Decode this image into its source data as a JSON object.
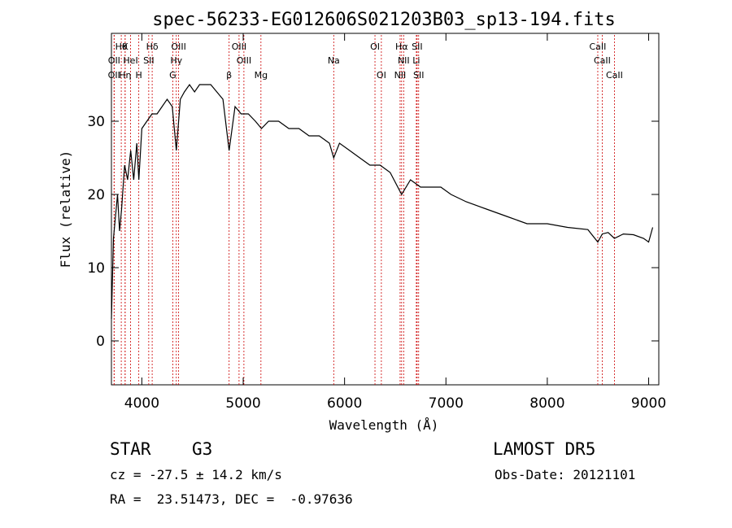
{
  "chart_data": {
    "type": "line",
    "title": "spec-56233-EG012606S021203B03_sp13-194.fits",
    "xlabel": "Wavelength (Å)",
    "ylabel": "Flux (relative)",
    "xlim": [
      3700,
      9100
    ],
    "ylim": [
      -6,
      42
    ],
    "xticks": [
      4000,
      5000,
      6000,
      7000,
      8000,
      9000
    ],
    "yticks": [
      0,
      10,
      20,
      30
    ],
    "grid": false,
    "series": [
      {
        "x": [
          3700,
          3720,
          3740,
          3760,
          3780,
          3800,
          3830,
          3860,
          3890,
          3920,
          3950,
          3970,
          4000,
          4050,
          4100,
          4150,
          4200,
          4250,
          4300,
          4340,
          4380,
          4420,
          4470,
          4520,
          4570,
          4620,
          4680,
          4740,
          4800,
          4861,
          4920,
          4980,
          5050,
          5120,
          5180,
          5250,
          5350,
          5450,
          5550,
          5650,
          5750,
          5850,
          5893,
          5950,
          6050,
          6150,
          6250,
          6350,
          6450,
          6563,
          6650,
          6750,
          6850,
          6950,
          7050,
          7200,
          7400,
          7600,
          7800,
          8000,
          8200,
          8400,
          8498,
          8542,
          8600,
          8662,
          8750,
          8850,
          8950,
          9000,
          9020,
          9040
        ],
        "y": [
          3,
          14,
          17,
          20,
          15,
          18,
          24,
          22,
          26,
          22,
          27,
          22,
          29,
          30,
          31,
          31,
          32,
          33,
          32,
          26,
          33,
          34,
          35,
          34,
          35,
          35,
          35,
          34,
          33,
          26,
          32,
          31,
          31,
          30,
          29,
          30,
          30,
          29,
          29,
          28,
          28,
          27,
          25,
          27,
          26,
          25,
          24,
          24,
          23,
          20,
          22,
          21,
          21,
          21,
          20,
          19,
          18,
          17,
          16,
          16,
          15.5,
          15.2,
          13.5,
          14.6,
          14.8,
          14,
          14.6,
          14.5,
          14,
          13.5,
          14.5,
          15.5
        ]
      }
    ],
    "lines": [
      {
        "x": 3797,
        "label": "Hθ",
        "row": 0
      },
      {
        "x": 3835,
        "label": "K",
        "row": 0
      },
      {
        "x": 4102,
        "label": "Hδ",
        "row": 0
      },
      {
        "x": 4363,
        "label": "OIII",
        "row": 0
      },
      {
        "x": 4959,
        "label": "OIII",
        "row": 0
      },
      {
        "x": 6300,
        "label": "OI",
        "row": 0
      },
      {
        "x": 6563,
        "label": "Hα",
        "row": 0
      },
      {
        "x": 6716,
        "label": "SII",
        "row": 0
      },
      {
        "x": 8498,
        "label": "CaII",
        "row": 0
      },
      {
        "x": 3727,
        "label": "OII",
        "row": 1
      },
      {
        "x": 3889,
        "label": "HeI",
        "row": 1
      },
      {
        "x": 4068,
        "label": "SII",
        "row": 1
      },
      {
        "x": 4340,
        "label": "Hγ",
        "row": 1
      },
      {
        "x": 5007,
        "label": "OIII",
        "row": 1
      },
      {
        "x": 5893,
        "label": "Na",
        "row": 1
      },
      {
        "x": 6583,
        "label": "NII",
        "row": 1
      },
      {
        "x": 6708,
        "label": "Li",
        "row": 1
      },
      {
        "x": 8542,
        "label": "CaII",
        "row": 1
      },
      {
        "x": 3726,
        "label": "OII",
        "row": 2
      },
      {
        "x": 3835,
        "label": "Hη",
        "row": 2
      },
      {
        "x": 3970,
        "label": "H",
        "row": 2
      },
      {
        "x": 4305,
        "label": "G",
        "row": 2
      },
      {
        "x": 4861,
        "label": "β",
        "row": 2
      },
      {
        "x": 5175,
        "label": "Mg",
        "row": 2
      },
      {
        "x": 6363,
        "label": "OI",
        "row": 2
      },
      {
        "x": 6548,
        "label": "NII",
        "row": 2
      },
      {
        "x": 6731,
        "label": "SII",
        "row": 2
      },
      {
        "x": 8662,
        "label": "CaII",
        "row": 2
      }
    ]
  },
  "info": {
    "object_type": "STAR",
    "subclass": "G3",
    "survey": "LAMOST DR5",
    "cz": "cz = -27.5 ± 14.2 km/s",
    "obs_date": "Obs-Date: 20121101",
    "coords": "RA =  23.51473, DEC =  -0.97636"
  }
}
